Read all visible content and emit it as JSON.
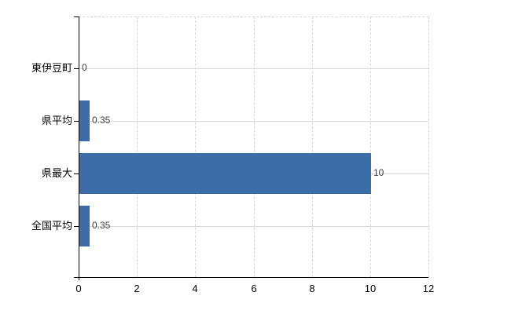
{
  "colors": {
    "bar": "#3c6da8",
    "axis": "#000000",
    "gridline_horizontal": "#d9d9d9",
    "gridline_vertical": "#d8d8d8",
    "category_label": "#000000",
    "tick_label": "#000000",
    "value_label": "#3f3f3f",
    "background": "#ffffff"
  },
  "chart_data": {
    "type": "bar",
    "orientation": "horizontal",
    "title": "",
    "xlabel": "",
    "ylabel": "",
    "categories": [
      "東伊豆町",
      "県平均",
      "県最大",
      "全国平均"
    ],
    "values": [
      0,
      0.35,
      10,
      0.35
    ],
    "value_labels": [
      "0",
      "0.35",
      "10",
      "0.35"
    ],
    "x_ticks": [
      "0",
      "2",
      "4",
      "6",
      "8",
      "10",
      "12"
    ],
    "x_tick_values": [
      0,
      2,
      4,
      6,
      8,
      10,
      12
    ],
    "xlim": [
      0,
      12
    ],
    "grid": true,
    "legend": false
  }
}
